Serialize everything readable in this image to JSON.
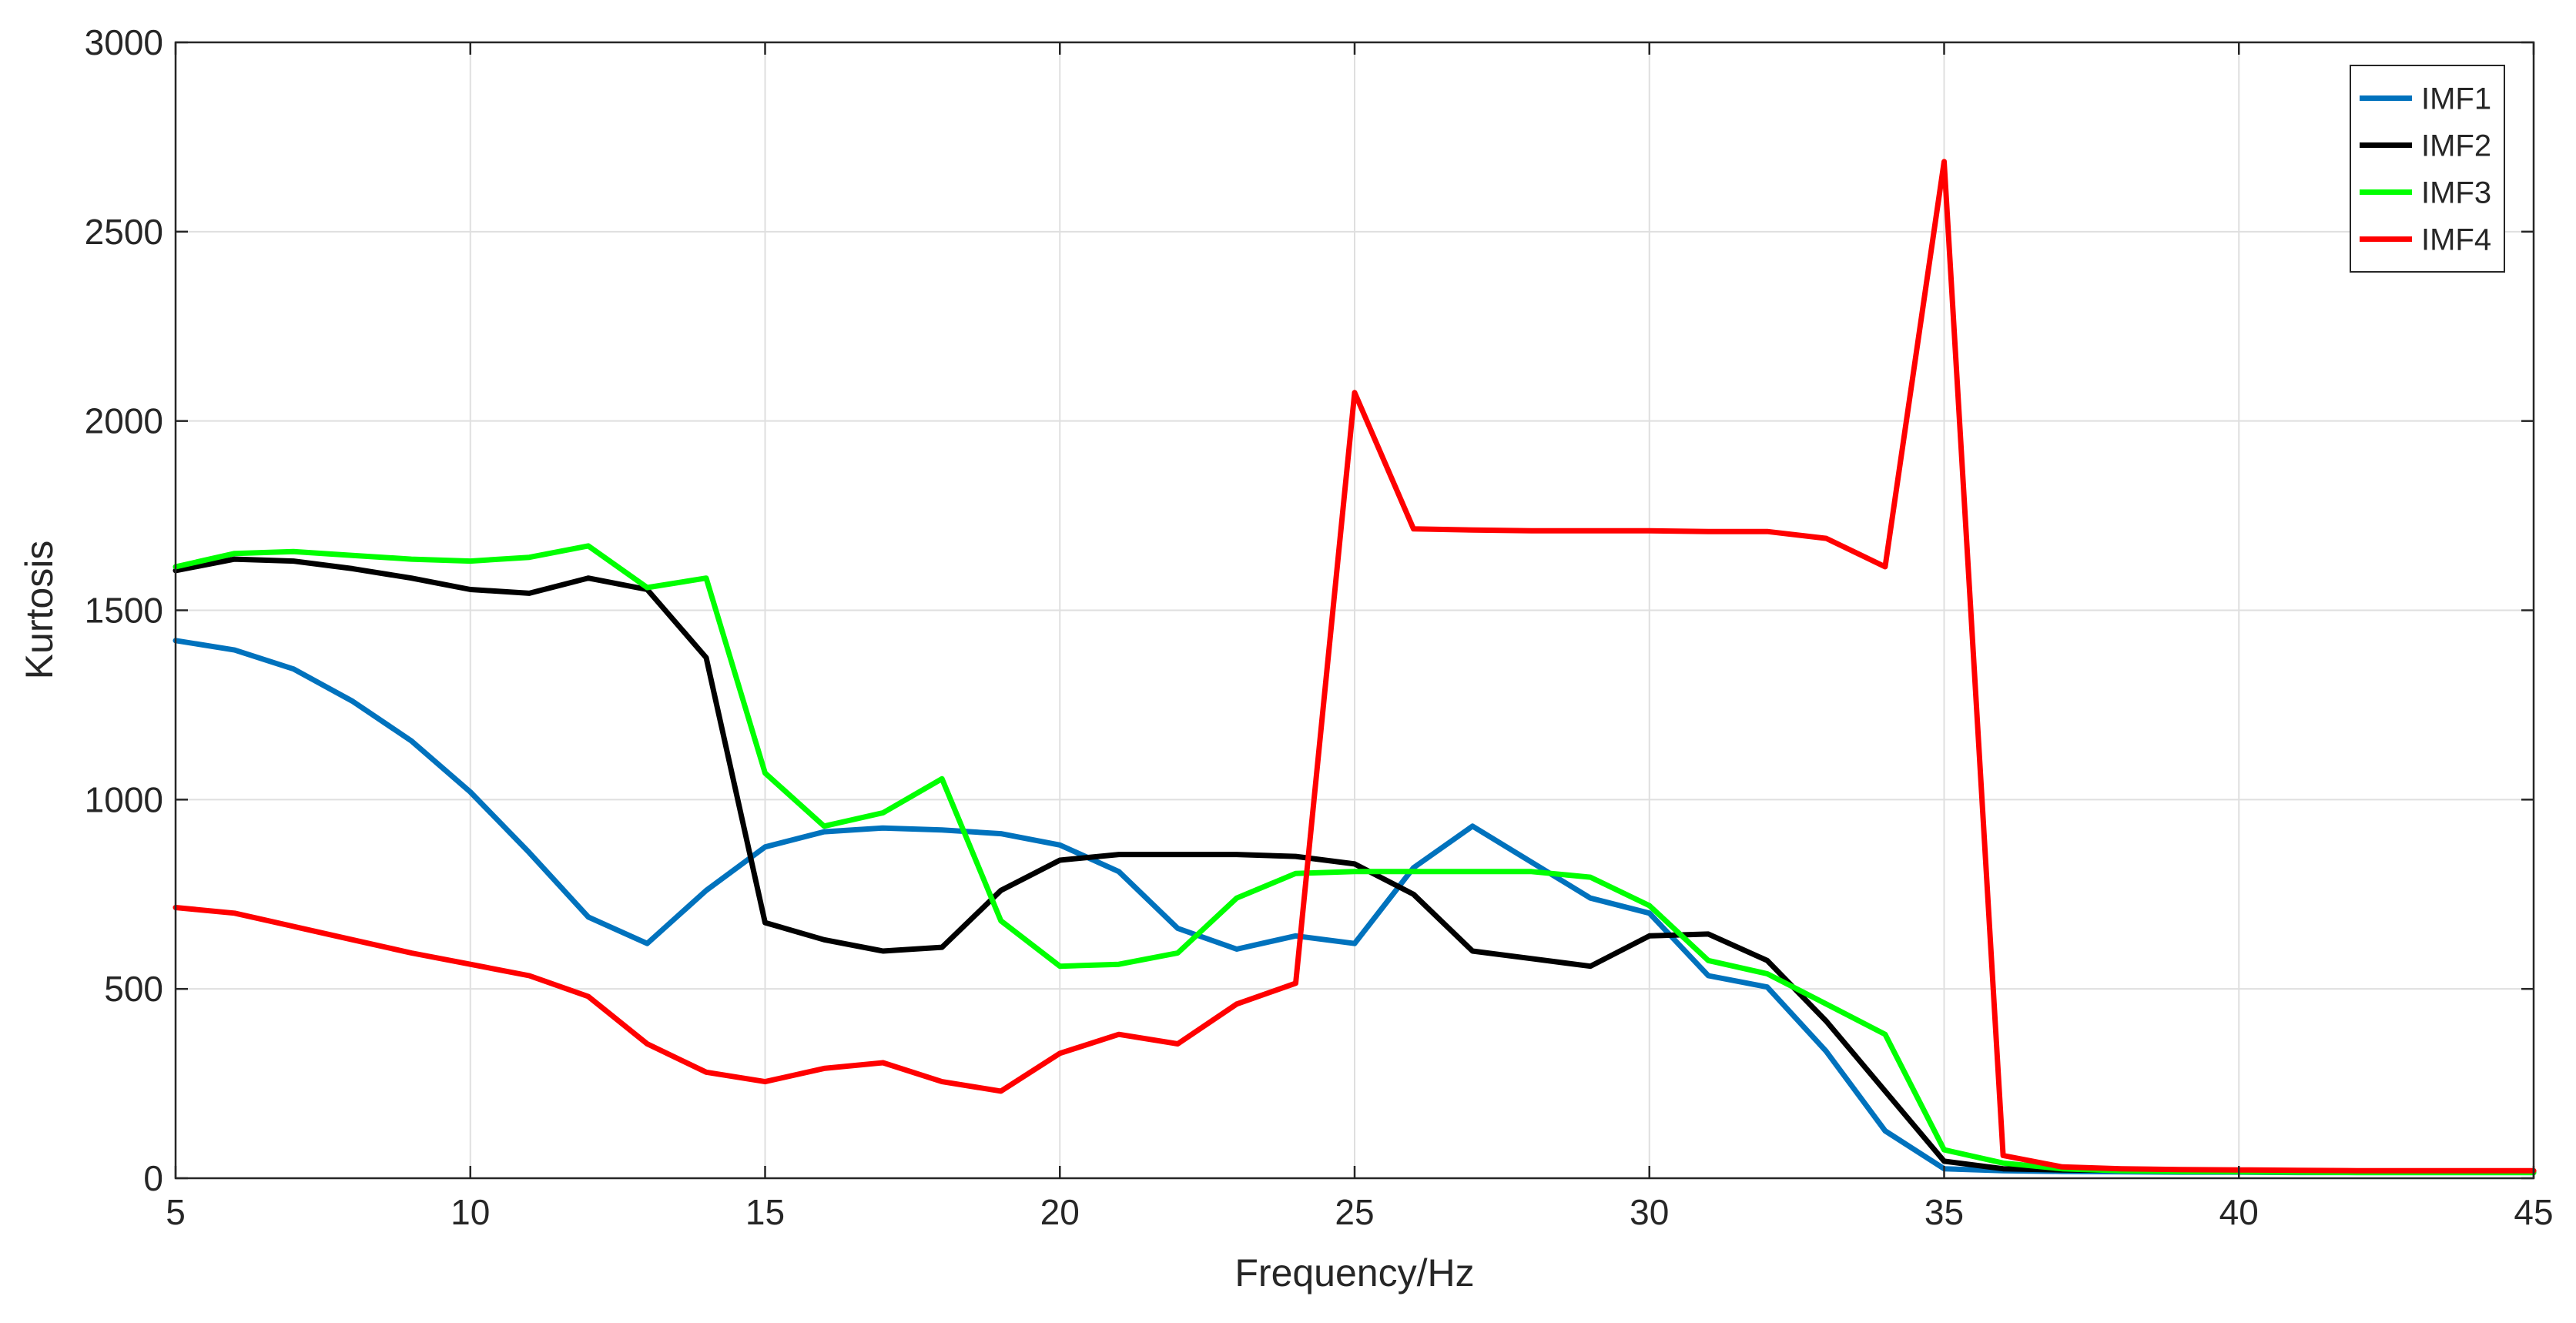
{
  "chart_data": {
    "type": "line",
    "title": "",
    "xlabel": "Frequency/Hz",
    "ylabel": "Kurtosis",
    "xlim": [
      5,
      45
    ],
    "ylim": [
      0,
      3000
    ],
    "xticks": [
      5,
      10,
      15,
      20,
      25,
      30,
      35,
      40,
      45
    ],
    "yticks": [
      0,
      500,
      1000,
      1500,
      2000,
      2500,
      3000
    ],
    "grid": true,
    "legend_position": "top-right",
    "series": [
      {
        "name": "IMF1",
        "color": "#0072BD",
        "x": [
          5,
          6,
          7,
          8,
          9,
          10,
          11,
          12,
          13,
          14,
          15,
          16,
          17,
          18,
          19,
          20,
          21,
          22,
          23,
          24,
          25,
          26,
          27,
          28,
          29,
          30,
          31,
          32,
          33,
          34,
          35,
          36,
          37,
          38,
          39,
          40,
          41,
          42,
          43,
          44,
          45
        ],
        "y": [
          1420,
          1395,
          1345,
          1260,
          1155,
          1020,
          860,
          690,
          620,
          760,
          875,
          915,
          925,
          920,
          910,
          880,
          810,
          660,
          605,
          640,
          620,
          820,
          930,
          835,
          740,
          700,
          535,
          505,
          335,
          125,
          25,
          20,
          18,
          17,
          16,
          16,
          15,
          15,
          15,
          15,
          15
        ]
      },
      {
        "name": "IMF2",
        "color": "#000000",
        "x": [
          5,
          6,
          7,
          8,
          9,
          10,
          11,
          12,
          13,
          14,
          15,
          16,
          17,
          18,
          19,
          20,
          21,
          22,
          23,
          24,
          25,
          26,
          27,
          28,
          29,
          30,
          31,
          32,
          33,
          34,
          35,
          36,
          37,
          38,
          39,
          40,
          41,
          42,
          43,
          44,
          45
        ],
        "y": [
          1605,
          1635,
          1630,
          1610,
          1585,
          1555,
          1545,
          1585,
          1555,
          1375,
          675,
          630,
          600,
          610,
          760,
          840,
          855,
          855,
          855,
          850,
          830,
          750,
          600,
          580,
          560,
          640,
          645,
          575,
          415,
          230,
          45,
          25,
          22,
          21,
          20,
          20,
          19,
          19,
          19,
          19,
          19
        ]
      },
      {
        "name": "IMF3",
        "color": "#00FF00",
        "x": [
          5,
          6,
          7,
          8,
          9,
          10,
          11,
          12,
          13,
          14,
          15,
          16,
          17,
          18,
          19,
          20,
          21,
          22,
          23,
          24,
          25,
          26,
          27,
          28,
          29,
          30,
          31,
          32,
          33,
          34,
          35,
          36,
          37,
          38,
          39,
          40,
          41,
          42,
          43,
          44,
          45
        ],
        "y": [
          1615,
          1650,
          1655,
          1645,
          1635,
          1630,
          1640,
          1670,
          1560,
          1585,
          1070,
          930,
          965,
          1055,
          680,
          560,
          565,
          595,
          740,
          805,
          810,
          810,
          810,
          810,
          795,
          720,
          575,
          540,
          460,
          380,
          75,
          40,
          25,
          20,
          18,
          17,
          16,
          15,
          15,
          15,
          15
        ]
      },
      {
        "name": "IMF4",
        "color": "#FF0000",
        "x": [
          5,
          6,
          7,
          8,
          9,
          10,
          11,
          12,
          13,
          14,
          15,
          16,
          17,
          18,
          19,
          20,
          21,
          22,
          23,
          24,
          25,
          26,
          27,
          28,
          29,
          30,
          31,
          32,
          33,
          34,
          35,
          36,
          37,
          38,
          39,
          40,
          41,
          42,
          43,
          44,
          45
        ],
        "y": [
          715,
          700,
          665,
          630,
          595,
          565,
          535,
          480,
          355,
          280,
          255,
          290,
          305,
          255,
          230,
          330,
          380,
          355,
          460,
          515,
          2075,
          1715,
          1712,
          1710,
          1710,
          1710,
          1708,
          1708,
          1690,
          1615,
          2685,
          60,
          30,
          25,
          23,
          22,
          21,
          20,
          20,
          20,
          20
        ]
      }
    ]
  }
}
